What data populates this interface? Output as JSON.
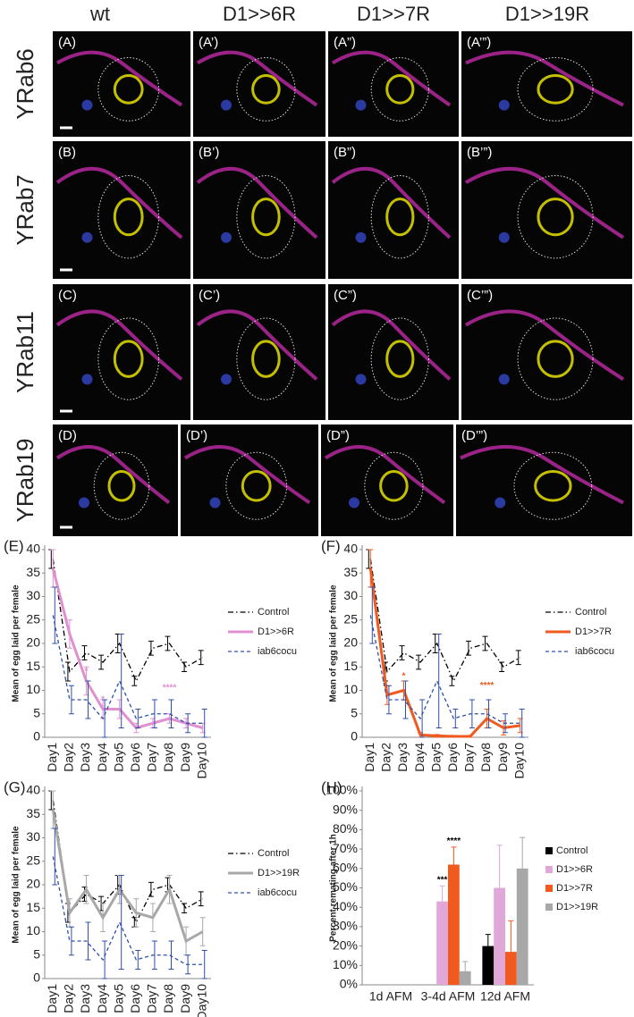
{
  "panels": {
    "columns": [
      "wt",
      "D1>>6R",
      "D1>>7R",
      "D1>>19R"
    ],
    "rows": [
      {
        "label": "YRab6",
        "panels": [
          "(A)",
          "(A’)",
          "(A”)",
          "(A’”)"
        ]
      },
      {
        "label": "YRab7",
        "panels": [
          "(B)",
          "(B’)",
          "(B”)",
          "(B’”)"
        ]
      },
      {
        "label": "YRab11",
        "panels": [
          "(C)",
          "(C’)",
          "(C”)",
          "(C’”)"
        ]
      },
      {
        "label": "YRab19",
        "panels": [
          "(D)",
          "(D’)",
          "(D”)",
          "(D’”)"
        ]
      }
    ]
  },
  "chart_data": [
    {
      "type": "line",
      "title": "(E)",
      "y_label": "Mean of egg laid per female",
      "categories": [
        "Day1",
        "Day2",
        "Day3",
        "Day4",
        "Day5",
        "Day6",
        "Day7",
        "Day8",
        "Day9",
        "Day10"
      ],
      "ylim": [
        0,
        40
      ],
      "yticks": [
        0,
        5,
        10,
        15,
        20,
        25,
        30,
        35,
        40
      ],
      "series": [
        {
          "name": "Control",
          "color": "#000000",
          "line_style": "dashdot",
          "values": [
            38,
            14,
            18,
            16,
            20,
            12,
            19,
            20,
            15,
            17
          ],
          "errors": [
            2,
            2,
            1.5,
            1.5,
            2,
            1,
            1.5,
            1.5,
            1,
            1.5
          ]
        },
        {
          "name": "D1>>6R",
          "color": "#e090d0",
          "line_style": "solid",
          "values": [
            36,
            22,
            12,
            6,
            6,
            2,
            3,
            4,
            3,
            2
          ],
          "errors": [
            4,
            3,
            3,
            2,
            2,
            1,
            1,
            1,
            1,
            1
          ]
        },
        {
          "name": "iab6cocu",
          "color": "#3050a8",
          "line_style": "dashed",
          "values": [
            26,
            8,
            8,
            4,
            12,
            4,
            5,
            5,
            3,
            3
          ],
          "errors": [
            6,
            3,
            4,
            4,
            10,
            2,
            3,
            3,
            2,
            3
          ]
        }
      ],
      "annotations": [
        {
          "text": "*",
          "category": "Day3",
          "y": 14,
          "color": "#e090d0"
        },
        {
          "text": "*",
          "category": "Day4",
          "y": 8,
          "color": "#e090d0"
        },
        {
          "text": "****",
          "category": "Day8",
          "y": 10.5,
          "color": "#e090d0"
        }
      ]
    },
    {
      "type": "line",
      "title": "(F)",
      "y_label": "Mean of egg laid per female",
      "categories": [
        "Day1",
        "Day2",
        "Day3",
        "Day4",
        "Day5",
        "Day6",
        "Day7",
        "Day8",
        "Day9",
        "Day10"
      ],
      "ylim": [
        0,
        40
      ],
      "yticks": [
        0,
        5,
        10,
        15,
        20,
        25,
        30,
        35,
        40
      ],
      "series": [
        {
          "name": "Control",
          "color": "#000000",
          "line_style": "dashdot",
          "values": [
            38,
            14,
            18,
            16,
            20,
            12,
            19,
            20,
            15,
            17
          ],
          "errors": [
            2,
            2,
            1.5,
            1.5,
            2,
            1,
            1.5,
            1.5,
            1,
            1.5
          ]
        },
        {
          "name": "D1>>7R",
          "color": "#f05a1e",
          "line_style": "solid",
          "values": [
            36,
            9,
            10,
            0.5,
            0.3,
            0.2,
            0.2,
            4,
            2,
            2.5
          ],
          "errors": [
            4,
            2,
            2,
            0.5,
            0.3,
            0.2,
            0.2,
            2,
            1.5,
            1.5
          ]
        },
        {
          "name": "iab6cocu",
          "color": "#3050a8",
          "line_style": "dashed",
          "values": [
            26,
            8,
            8,
            4,
            12,
            4,
            5,
            5,
            3,
            3
          ],
          "errors": [
            6,
            3,
            4,
            4,
            10,
            2,
            3,
            3,
            2,
            3
          ]
        }
      ],
      "annotations": [
        {
          "text": "*",
          "category": "Day3",
          "y": 13,
          "color": "#f05a1e"
        },
        {
          "text": "****",
          "category": "Day8",
          "y": 11,
          "color": "#f05a1e"
        }
      ]
    },
    {
      "type": "line",
      "title": "(G)",
      "y_label": "Mean of egg laid per female",
      "categories": [
        "Day1",
        "Day2",
        "Day3",
        "Day4",
        "Day5",
        "Day6",
        "Day7",
        "Day8",
        "Day9",
        "Day10"
      ],
      "ylim": [
        0,
        40
      ],
      "yticks": [
        0,
        5,
        10,
        15,
        20,
        25,
        30,
        35,
        40
      ],
      "series": [
        {
          "name": "Control",
          "color": "#000000",
          "line_style": "dashdot",
          "values": [
            38,
            14,
            18,
            16,
            20,
            12,
            19,
            20,
            15,
            17
          ],
          "errors": [
            2,
            2,
            1.5,
            1.5,
            2,
            1,
            1.5,
            1.5,
            1,
            1.5
          ]
        },
        {
          "name": "D1>>19R",
          "color": "#a8a8a8",
          "line_style": "solid",
          "values": [
            36,
            14,
            19,
            13,
            19,
            14,
            13,
            19,
            8,
            10
          ],
          "errors": [
            4,
            3,
            3,
            3,
            3,
            3,
            3,
            3,
            3,
            3
          ]
        },
        {
          "name": "iab6cocu",
          "color": "#3050a8",
          "line_style": "dashed",
          "values": [
            26,
            8,
            8,
            4,
            12,
            4,
            5,
            5,
            3,
            3
          ],
          "errors": [
            6,
            3,
            4,
            4,
            10,
            2,
            3,
            3,
            2,
            3
          ]
        }
      ],
      "annotations": []
    },
    {
      "type": "bar",
      "title": "(H)",
      "y_label": "Percent remating after 1h",
      "categories": [
        "1d AFM",
        "3-4d AFM",
        "12d AFM"
      ],
      "ylim": [
        0,
        100
      ],
      "yticks": [
        {
          "value": 0,
          "label": "0%"
        },
        {
          "value": 10,
          "label": "10%"
        },
        {
          "value": 20,
          "label": "20%"
        },
        {
          "value": 30,
          "label": "30%"
        },
        {
          "value": 40,
          "label": "40%"
        },
        {
          "value": 50,
          "label": "50%"
        },
        {
          "value": 60,
          "label": "60%"
        },
        {
          "value": 70,
          "label": "70%"
        },
        {
          "value": 80,
          "label": "80%"
        },
        {
          "value": 90,
          "label": "90%"
        },
        {
          "value": 100,
          "label": "100%"
        }
      ],
      "series": [
        {
          "name": "Control",
          "color": "#000000",
          "values": [
            0,
            0,
            20
          ],
          "errors": [
            0,
            0,
            6
          ]
        },
        {
          "name": "D1>>6R",
          "color": "#e0a8d8",
          "values": [
            0,
            43,
            50
          ],
          "errors": [
            0,
            8,
            22
          ]
        },
        {
          "name": "D1>>7R",
          "color": "#f05a1e",
          "values": [
            0,
            62,
            17
          ],
          "errors": [
            0,
            9,
            16
          ]
        },
        {
          "name": "D1>>19R",
          "color": "#a8a8a8",
          "values": [
            0,
            7,
            60
          ],
          "errors": [
            0,
            5,
            16
          ]
        }
      ],
      "annotations": [
        {
          "text": "***",
          "category": "3-4d AFM",
          "series": "D1>>6R",
          "y": 54,
          "color": "#000000"
        },
        {
          "text": "****",
          "category": "3-4d AFM",
          "series": "D1>>7R",
          "y": 74,
          "color": "#000000"
        }
      ]
    }
  ]
}
